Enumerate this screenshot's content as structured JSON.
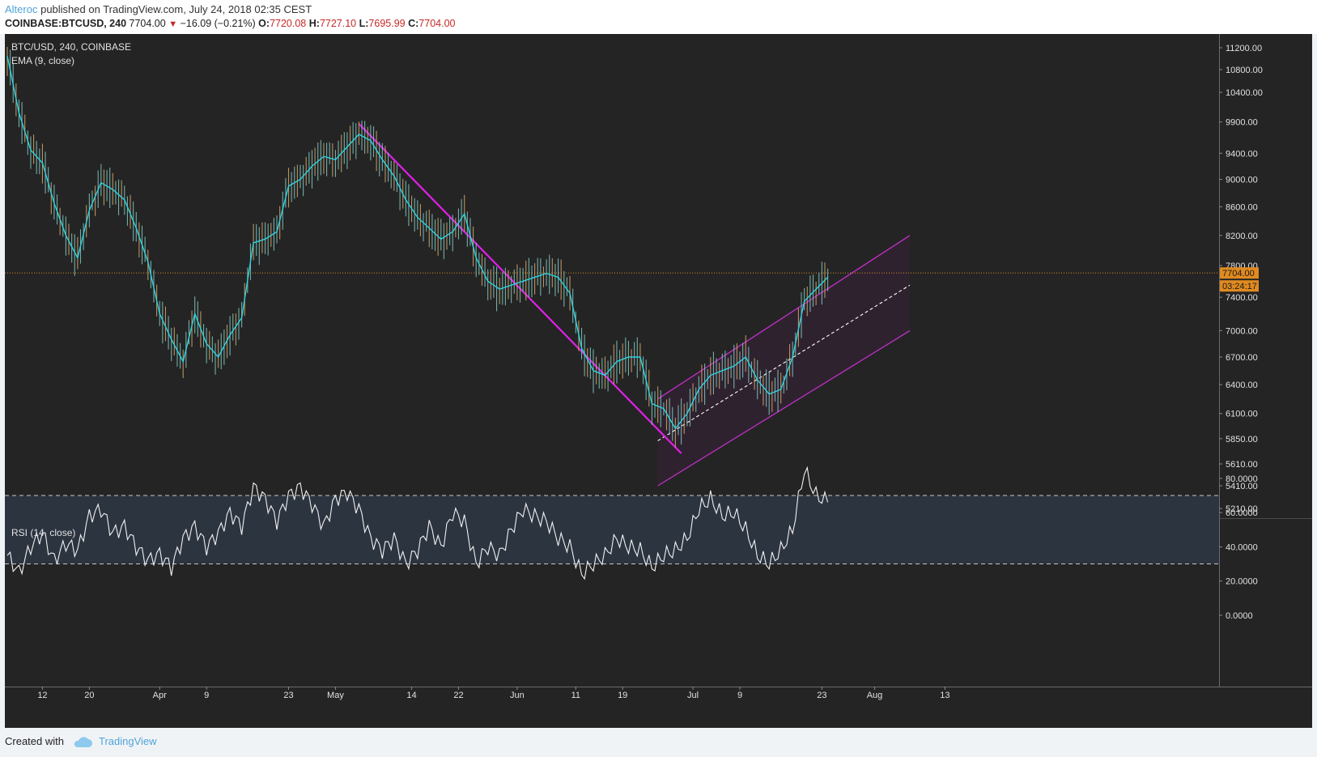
{
  "header": {
    "author": "Alteroc",
    "published_text": "published on TradingView.com, July 24, 2018 02:35 CEST",
    "symbol": "COINBASE:BTCUSD, 240",
    "last": "7704.00",
    "change": "−16.09 (−0.21%)",
    "open_label": "O:",
    "open": "7720.08",
    "high_label": "H:",
    "high": "7727.10",
    "low_label": "L:",
    "low": "7695.99",
    "close_label": "C:",
    "close": "7704.00"
  },
  "chart_data": [
    {
      "type": "line",
      "pane": "price",
      "legend": [
        "BTC/USD, 240, COINBASE",
        "EMA (9, close)"
      ],
      "y_ticks": [
        "11200.00",
        "10800.00",
        "10400.00",
        "9900.00",
        "9400.00",
        "9000.00",
        "8600.00",
        "8200.00",
        "7800.00",
        "7400.00",
        "7000.00",
        "6700.00",
        "6400.00",
        "6100.00",
        "5850.00",
        "5610.00",
        "5410.00",
        "5210.00"
      ],
      "y_tick_values": [
        11200,
        10800,
        10400,
        9900,
        9400,
        9000,
        8600,
        8200,
        7800,
        7400,
        7000,
        6700,
        6400,
        6100,
        5850,
        5610,
        5410,
        5210
      ],
      "scale": "log",
      "x_ticks": [
        "12",
        "20",
        "Apr",
        "9",
        "23",
        "May",
        "14",
        "22",
        "Jun",
        "11",
        "19",
        "Jul",
        "9",
        "23",
        "Aug",
        "13"
      ],
      "x_tick_dates": [
        "2018-03-12",
        "2018-03-20",
        "2018-04-01",
        "2018-04-09",
        "2018-04-23",
        "2018-05-01",
        "2018-05-14",
        "2018-05-22",
        "2018-06-01",
        "2018-06-11",
        "2018-06-19",
        "2018-07-01",
        "2018-07-09",
        "2018-07-23",
        "2018-08-01",
        "2018-08-13"
      ],
      "last_price_label": "7704.00",
      "countdown_label": "03:24:17",
      "last_price": 7704.0,
      "ema_series": {
        "name": "EMA (9, close)",
        "x": [
          "2018-03-06",
          "2018-03-08",
          "2018-03-10",
          "2018-03-12",
          "2018-03-14",
          "2018-03-16",
          "2018-03-18",
          "2018-03-20",
          "2018-03-22",
          "2018-03-24",
          "2018-03-26",
          "2018-03-28",
          "2018-03-30",
          "2018-04-01",
          "2018-04-03",
          "2018-04-05",
          "2018-04-07",
          "2018-04-09",
          "2018-04-11",
          "2018-04-13",
          "2018-04-15",
          "2018-04-17",
          "2018-04-19",
          "2018-04-21",
          "2018-04-23",
          "2018-04-25",
          "2018-04-27",
          "2018-04-29",
          "2018-05-01",
          "2018-05-03",
          "2018-05-05",
          "2018-05-07",
          "2018-05-09",
          "2018-05-11",
          "2018-05-13",
          "2018-05-15",
          "2018-05-17",
          "2018-05-19",
          "2018-05-21",
          "2018-05-23",
          "2018-05-25",
          "2018-05-27",
          "2018-05-29",
          "2018-05-31",
          "2018-06-02",
          "2018-06-04",
          "2018-06-06",
          "2018-06-08",
          "2018-06-10",
          "2018-06-12",
          "2018-06-14",
          "2018-06-16",
          "2018-06-18",
          "2018-06-20",
          "2018-06-22",
          "2018-06-24",
          "2018-06-26",
          "2018-06-28",
          "2018-06-30",
          "2018-07-02",
          "2018-07-04",
          "2018-07-06",
          "2018-07-08",
          "2018-07-10",
          "2018-07-12",
          "2018-07-14",
          "2018-07-16",
          "2018-07-18",
          "2018-07-20",
          "2018-07-22",
          "2018-07-24"
        ],
        "y": [
          11050,
          10050,
          9450,
          9250,
          8650,
          8200,
          7900,
          8550,
          8950,
          8850,
          8700,
          8300,
          7850,
          7200,
          6900,
          6650,
          7200,
          6850,
          6700,
          6950,
          7150,
          8100,
          8150,
          8250,
          8900,
          9000,
          9200,
          9350,
          9300,
          9500,
          9700,
          9600,
          9300,
          9050,
          8700,
          8450,
          8300,
          8150,
          8250,
          8500,
          7900,
          7600,
          7500,
          7550,
          7600,
          7650,
          7700,
          7650,
          7450,
          6800,
          6550,
          6500,
          6650,
          6700,
          6700,
          6200,
          6150,
          5950,
          6100,
          6350,
          6500,
          6550,
          6600,
          6700,
          6450,
          6300,
          6350,
          6700,
          7350,
          7500,
          7650
        ]
      }
    },
    {
      "type": "line",
      "pane": "rsi",
      "legend": [
        "RSI (14, close)"
      ],
      "y_ticks": [
        "80.0000",
        "60.0000",
        "40.0000",
        "20.0000",
        "0.0000"
      ],
      "y_tick_values": [
        80,
        60,
        40,
        20,
        0
      ],
      "band": [
        30,
        70
      ],
      "series": [
        {
          "name": "RSI (14, close)",
          "x": [
            "2018-03-06",
            "2018-03-08",
            "2018-03-10",
            "2018-03-12",
            "2018-03-14",
            "2018-03-16",
            "2018-03-18",
            "2018-03-20",
            "2018-03-22",
            "2018-03-24",
            "2018-03-26",
            "2018-03-28",
            "2018-03-30",
            "2018-04-01",
            "2018-04-03",
            "2018-04-05",
            "2018-04-07",
            "2018-04-09",
            "2018-04-11",
            "2018-04-13",
            "2018-04-15",
            "2018-04-17",
            "2018-04-19",
            "2018-04-21",
            "2018-04-23",
            "2018-04-25",
            "2018-04-27",
            "2018-04-29",
            "2018-05-01",
            "2018-05-03",
            "2018-05-05",
            "2018-05-07",
            "2018-05-09",
            "2018-05-11",
            "2018-05-13",
            "2018-05-15",
            "2018-05-17",
            "2018-05-19",
            "2018-05-21",
            "2018-05-23",
            "2018-05-25",
            "2018-05-27",
            "2018-05-29",
            "2018-05-31",
            "2018-06-02",
            "2018-06-04",
            "2018-06-06",
            "2018-06-08",
            "2018-06-10",
            "2018-06-12",
            "2018-06-14",
            "2018-06-16",
            "2018-06-18",
            "2018-06-20",
            "2018-06-22",
            "2018-06-24",
            "2018-06-26",
            "2018-06-28",
            "2018-06-30",
            "2018-07-02",
            "2018-07-04",
            "2018-07-06",
            "2018-07-08",
            "2018-07-10",
            "2018-07-12",
            "2018-07-14",
            "2018-07-16",
            "2018-07-18",
            "2018-07-20",
            "2018-07-22",
            "2018-07-24"
          ],
          "y": [
            35,
            25,
            40,
            48,
            32,
            42,
            38,
            58,
            62,
            48,
            52,
            40,
            32,
            36,
            28,
            45,
            52,
            40,
            48,
            60,
            52,
            75,
            68,
            55,
            70,
            75,
            65,
            52,
            68,
            72,
            62,
            45,
            38,
            45,
            30,
            38,
            52,
            40,
            60,
            55,
            30,
            40,
            35,
            50,
            62,
            58,
            55,
            45,
            40,
            24,
            30,
            35,
            45,
            40,
            38,
            28,
            35,
            38,
            45,
            62,
            68,
            58,
            60,
            50,
            35,
            30,
            38,
            50,
            85,
            70,
            66
          ]
        }
      ]
    }
  ],
  "footer": {
    "created_with": "Created with",
    "brand": "TradingView"
  }
}
